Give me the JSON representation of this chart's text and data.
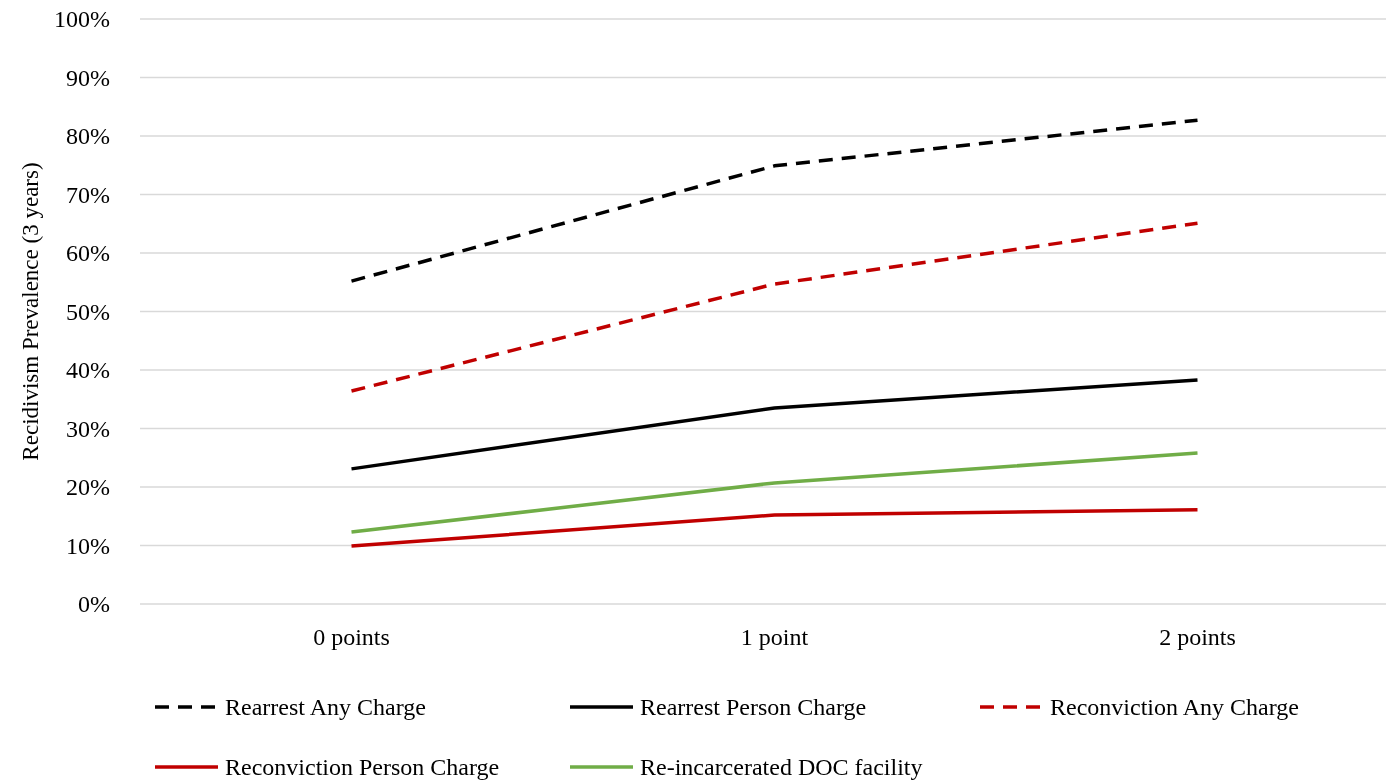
{
  "chart_data": {
    "type": "line",
    "ylabel": "Recidivism Prevalence (3 years)",
    "categories": [
      "0 points",
      "1 point",
      "2 points"
    ],
    "series": [
      {
        "name": "Rearrest Any Charge",
        "color": "#000000",
        "line_style": "dashed",
        "values": [
          55.2,
          74.9,
          82.7
        ]
      },
      {
        "name": "Rearrest Person Charge",
        "color": "#000000",
        "line_style": "solid",
        "values": [
          23.1,
          33.5,
          38.3
        ]
      },
      {
        "name": "Reconviction Any Charge",
        "color": "#c00000",
        "line_style": "dashed",
        "values": [
          36.4,
          54.7,
          65.1
        ]
      },
      {
        "name": "Reconviction Person Charge",
        "color": "#c00000",
        "line_style": "solid",
        "values": [
          9.9,
          15.2,
          16.1
        ]
      },
      {
        "name": "Re-incarcerated DOC facility",
        "color": "#70ad47",
        "line_style": "solid",
        "values": [
          12.3,
          20.7,
          25.8
        ]
      }
    ],
    "ylim": [
      0,
      100
    ],
    "yticks": [
      {
        "value": 0,
        "label": "0%"
      },
      {
        "value": 10,
        "label": "10%"
      },
      {
        "value": 20,
        "label": "20%"
      },
      {
        "value": 30,
        "label": "30%"
      },
      {
        "value": 40,
        "label": "40%"
      },
      {
        "value": 50,
        "label": "50%"
      },
      {
        "value": 60,
        "label": "60%"
      },
      {
        "value": 70,
        "label": "70%"
      },
      {
        "value": 80,
        "label": "80%"
      },
      {
        "value": 90,
        "label": "90%"
      },
      {
        "value": 100,
        "label": "100%"
      }
    ],
    "grid": "y",
    "legend": "bottom",
    "marker": "none"
  }
}
